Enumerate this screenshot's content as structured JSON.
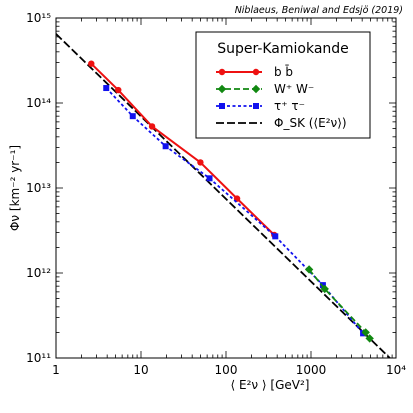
{
  "credit": "Niblaeus, Beniwal and Edsjö (2019)",
  "chart_data": {
    "type": "line",
    "xscale": "log",
    "yscale": "log",
    "xlim": [
      1,
      10000
    ],
    "ylim": [
      100000000000.0,
      1000000000000000.0
    ],
    "xlabel": "⟨ E²ν ⟩ [GeV²]",
    "ylabel": "Φν [km⁻² yr⁻¹]",
    "x_ticks": [
      {
        "value": 1,
        "label": "1"
      },
      {
        "value": 10,
        "label": "10"
      },
      {
        "value": 100,
        "label": "100"
      },
      {
        "value": 1000,
        "label": "1000"
      },
      {
        "value": 10000,
        "label": "10⁴"
      }
    ],
    "y_ticks": [
      {
        "value": 100000000000.0,
        "label": "10¹¹"
      },
      {
        "value": 1000000000000.0,
        "label": "10¹²"
      },
      {
        "value": 10000000000000.0,
        "label": "10¹³"
      },
      {
        "value": 100000000000000.0,
        "label": "10¹⁴"
      },
      {
        "value": 1000000000000000.0,
        "label": "10¹⁵"
      }
    ],
    "legend": {
      "title": "Super-Kamiokande",
      "placement": "top-right",
      "entries": [
        "b b̄",
        "W⁺ W⁻",
        "τ⁺ τ⁻",
        "Φ_SK (⟨E²ν⟩)"
      ]
    },
    "series": [
      {
        "name": "b b̄",
        "color": "#ee1111",
        "marker": "circle",
        "line": "solid",
        "x": [
          2.6,
          5.4,
          13.5,
          50,
          135,
          370
        ],
        "y": [
          290000000000000.0,
          142000000000000.0,
          53000000000000.0,
          20000000000000.0,
          7500000000000.0,
          2800000000000.0
        ]
      },
      {
        "name": "W⁺ W⁻",
        "color": "#118811",
        "marker": "diamond",
        "line": "dashed",
        "x": [
          950,
          1450,
          4400,
          4900
        ],
        "y": [
          1100000000000.0,
          650000000000.0,
          200000000000.0,
          170000000000.0
        ]
      },
      {
        "name": "τ⁺ τ⁻",
        "color": "#1111ee",
        "marker": "square",
        "line": "dotted",
        "x": [
          3.9,
          8.0,
          19.5,
          64,
          380,
          1380,
          4100
        ],
        "y": [
          150000000000000.0,
          70000000000000.0,
          31000000000000.0,
          13000000000000.0,
          2700000000000.0,
          720000000000.0,
          195000000000.0
        ]
      },
      {
        "name": "Φ_SK",
        "color": "#000000",
        "marker": "none",
        "line": "long-dash",
        "x": [
          1,
          10000
        ],
        "y": [
          650000000000000.0,
          85000000000.0
        ]
      }
    ]
  }
}
